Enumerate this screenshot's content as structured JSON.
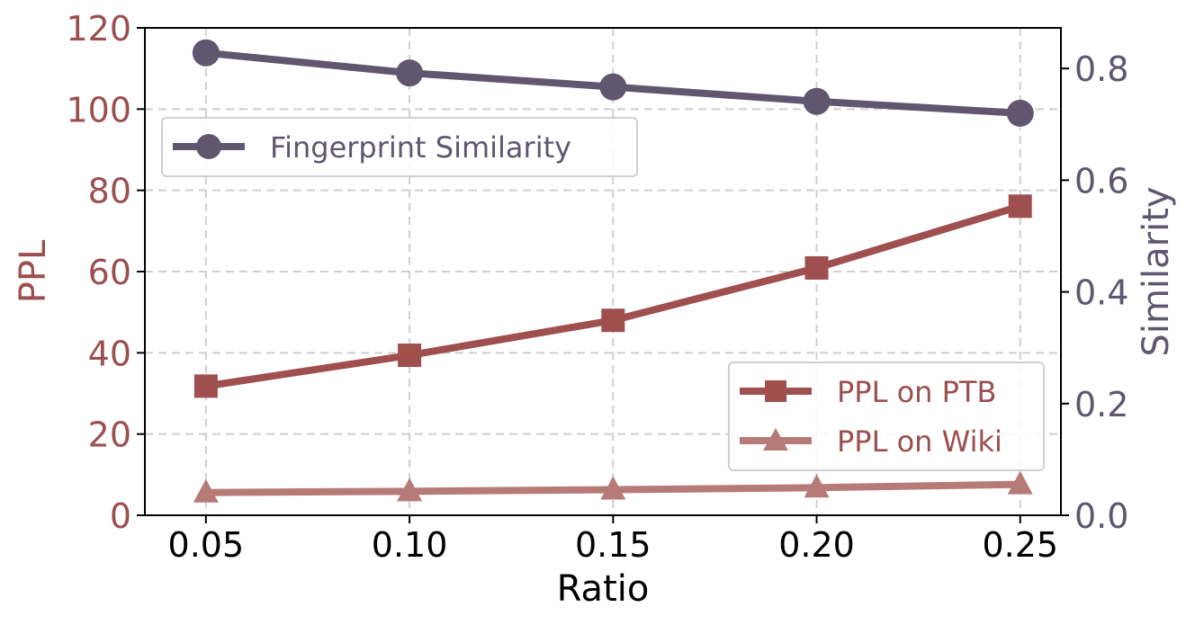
{
  "colors": {
    "ppl_axis": "#9c4f4f",
    "sim_axis": "#5f566f",
    "ptb": "#a04f4f",
    "wiki": "#b77b77",
    "similarity": "#61566f",
    "grid": "#cfcfcf",
    "black": "#000000"
  },
  "chart_data": {
    "type": "line",
    "title": "",
    "xlabel": "Ratio",
    "ylabel_left": "PPL",
    "ylabel_right": "Similarity",
    "x": [
      0.05,
      0.1,
      0.15,
      0.2,
      0.25
    ],
    "x_tick_labels": [
      "0.05",
      "0.10",
      "0.15",
      "0.20",
      "0.25"
    ],
    "xlim": [
      0.035,
      0.26
    ],
    "ylim_left": [
      0,
      120
    ],
    "y_left_ticks": [
      0,
      20,
      40,
      60,
      80,
      100,
      120
    ],
    "y_left_tick_labels": [
      "0",
      "20",
      "40",
      "60",
      "80",
      "100",
      "120"
    ],
    "ylim_right": [
      0.0,
      0.8727
    ],
    "y_right_ticks": [
      0.0,
      0.2,
      0.4,
      0.6,
      0.8
    ],
    "y_right_tick_labels": [
      "0.0",
      "0.2",
      "0.4",
      "0.6",
      "0.8"
    ],
    "grid": true,
    "series": [
      {
        "name": "PPL on PTB",
        "axis": "left",
        "marker": "square",
        "values": [
          31.8,
          39.4,
          48.0,
          60.9,
          76.1
        ]
      },
      {
        "name": "PPL on Wiki",
        "axis": "left",
        "marker": "triangle",
        "values": [
          5.6,
          5.9,
          6.3,
          6.8,
          7.6
        ]
      },
      {
        "name": "Fingerprint Similarity",
        "axis": "right",
        "marker": "circle",
        "values": [
          0.828,
          0.792,
          0.767,
          0.741,
          0.72
        ]
      }
    ],
    "legends": [
      {
        "placement": "upper-left",
        "entries": [
          "Fingerprint Similarity"
        ]
      },
      {
        "placement": "lower-right",
        "entries": [
          "PPL on PTB",
          "PPL on Wiki"
        ]
      }
    ]
  }
}
